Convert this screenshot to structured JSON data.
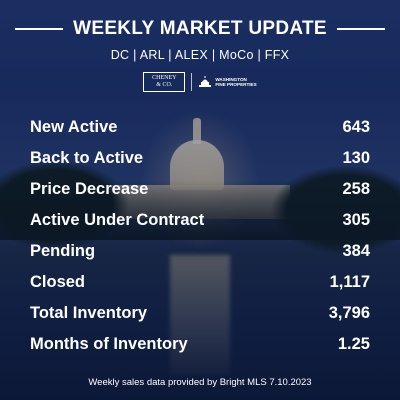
{
  "header": {
    "title": "WEEKLY MARKET UPDATE",
    "regions": "DC | ARL | ALEX | MoCo | FFX"
  },
  "logos": {
    "cheney": [
      "CHENEY",
      "& CO."
    ],
    "washington": [
      "WASHINGTON",
      "FINE PROPERTIES"
    ]
  },
  "stats": [
    {
      "label": "New Active",
      "value": "643"
    },
    {
      "label": "Back to Active",
      "value": "130"
    },
    {
      "label": "Price Decrease",
      "value": "258"
    },
    {
      "label": "Active Under Contract",
      "value": "305"
    },
    {
      "label": "Pending",
      "value": "384"
    },
    {
      "label": "Closed",
      "value": "1,117"
    },
    {
      "label": "Total Inventory",
      "value": "3,796"
    },
    {
      "label": "Months of Inventory",
      "value": "1.25"
    }
  ],
  "footer": "Weekly sales data provided by Bright MLS 7.10.2023"
}
